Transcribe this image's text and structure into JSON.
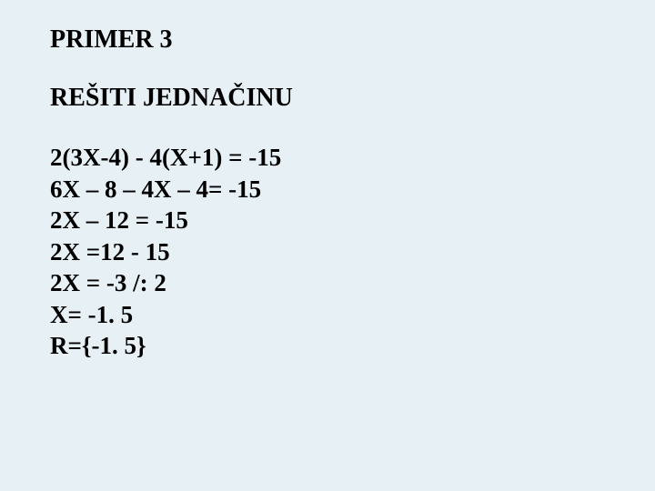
{
  "background_color": "#e6f0f5",
  "text_color": "#000000",
  "font_family": "Times New Roman",
  "title": {
    "text": "PRIMER 3",
    "fontsize": 28,
    "fontweight": "bold"
  },
  "subtitle": {
    "text": "REŠITI JEDNAČINU",
    "fontsize": 28,
    "fontweight": "bold"
  },
  "equations": {
    "fontsize": 27,
    "fontweight": "bold",
    "lines": [
      "2(3X-4) - 4(X+1) = -15",
      "6X – 8 – 4X – 4= -15",
      "2X – 12 = -15",
      "2X =12 - 15",
      "2X = -3  /: 2",
      "X= -1. 5",
      "R={-1. 5}"
    ]
  }
}
